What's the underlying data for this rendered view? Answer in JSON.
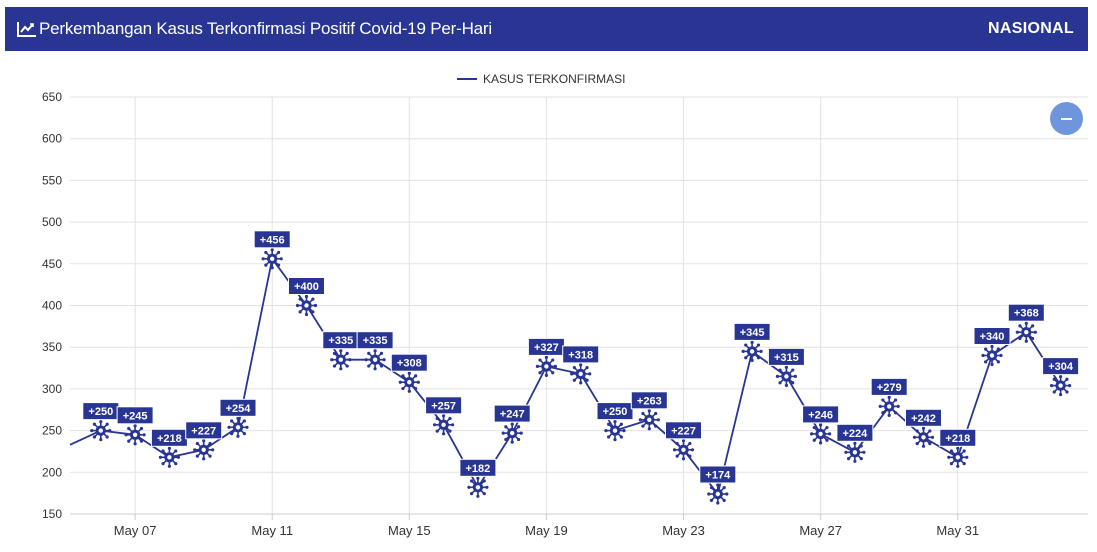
{
  "header": {
    "title": "Perkembangan Kasus Terkonfirmasi Positif Covid-19 Per-Hari",
    "region": "NASIONAL",
    "icon": "line-chart-icon"
  },
  "zoom_button": {
    "icon": "minus-icon"
  },
  "colors": {
    "header_bg": "#283593",
    "series": "#283593",
    "label_bg": "#283593",
    "zoom_button": "#6f96dc"
  },
  "chart_data": {
    "type": "line",
    "title": "",
    "xlabel": "",
    "ylabel": "",
    "ylim": [
      150,
      650
    ],
    "y_ticks": [
      150,
      200,
      250,
      300,
      350,
      400,
      450,
      500,
      550,
      600,
      650
    ],
    "x_tick_labels": [
      "May 07",
      "May 11",
      "May 15",
      "May 19",
      "May 23",
      "May 27",
      "May 31"
    ],
    "x_tick_days": [
      7,
      11,
      15,
      19,
      23,
      27,
      31
    ],
    "grid": true,
    "legend_position": "top-center",
    "series": [
      {
        "name": "KASUS TERKONFIRMASI",
        "points": [
          {
            "day": 5.1,
            "value": 233,
            "label": ""
          },
          {
            "day": 6,
            "value": 250,
            "label": "+250"
          },
          {
            "day": 7,
            "value": 245,
            "label": "+245"
          },
          {
            "day": 8,
            "value": 218,
            "label": "+218"
          },
          {
            "day": 9,
            "value": 227,
            "label": "+227"
          },
          {
            "day": 10,
            "value": 254,
            "label": "+254"
          },
          {
            "day": 11,
            "value": 456,
            "label": "+456"
          },
          {
            "day": 12,
            "value": 400,
            "label": "+400"
          },
          {
            "day": 13,
            "value": 335,
            "label": "+335"
          },
          {
            "day": 14,
            "value": 335,
            "label": "+335"
          },
          {
            "day": 15,
            "value": 308,
            "label": "+308"
          },
          {
            "day": 16,
            "value": 257,
            "label": "+257"
          },
          {
            "day": 17,
            "value": 182,
            "label": "+182"
          },
          {
            "day": 18,
            "value": 247,
            "label": "+247"
          },
          {
            "day": 19,
            "value": 327,
            "label": "+327"
          },
          {
            "day": 20,
            "value": 318,
            "label": "+318"
          },
          {
            "day": 21,
            "value": 250,
            "label": "+250"
          },
          {
            "day": 22,
            "value": 263,
            "label": "+263"
          },
          {
            "day": 23,
            "value": 227,
            "label": "+227"
          },
          {
            "day": 24,
            "value": 174,
            "label": "+174"
          },
          {
            "day": 25,
            "value": 345,
            "label": "+345"
          },
          {
            "day": 26,
            "value": 315,
            "label": "+315"
          },
          {
            "day": 27,
            "value": 246,
            "label": "+246"
          },
          {
            "day": 28,
            "value": 224,
            "label": "+224"
          },
          {
            "day": 29,
            "value": 279,
            "label": "+279"
          },
          {
            "day": 30,
            "value": 242,
            "label": "+242"
          },
          {
            "day": 31,
            "value": 218,
            "label": "+218"
          },
          {
            "day": 32,
            "value": 340,
            "label": "+340"
          },
          {
            "day": 33,
            "value": 368,
            "label": "+368"
          },
          {
            "day": 34,
            "value": 304,
            "label": "+304"
          }
        ]
      }
    ]
  }
}
